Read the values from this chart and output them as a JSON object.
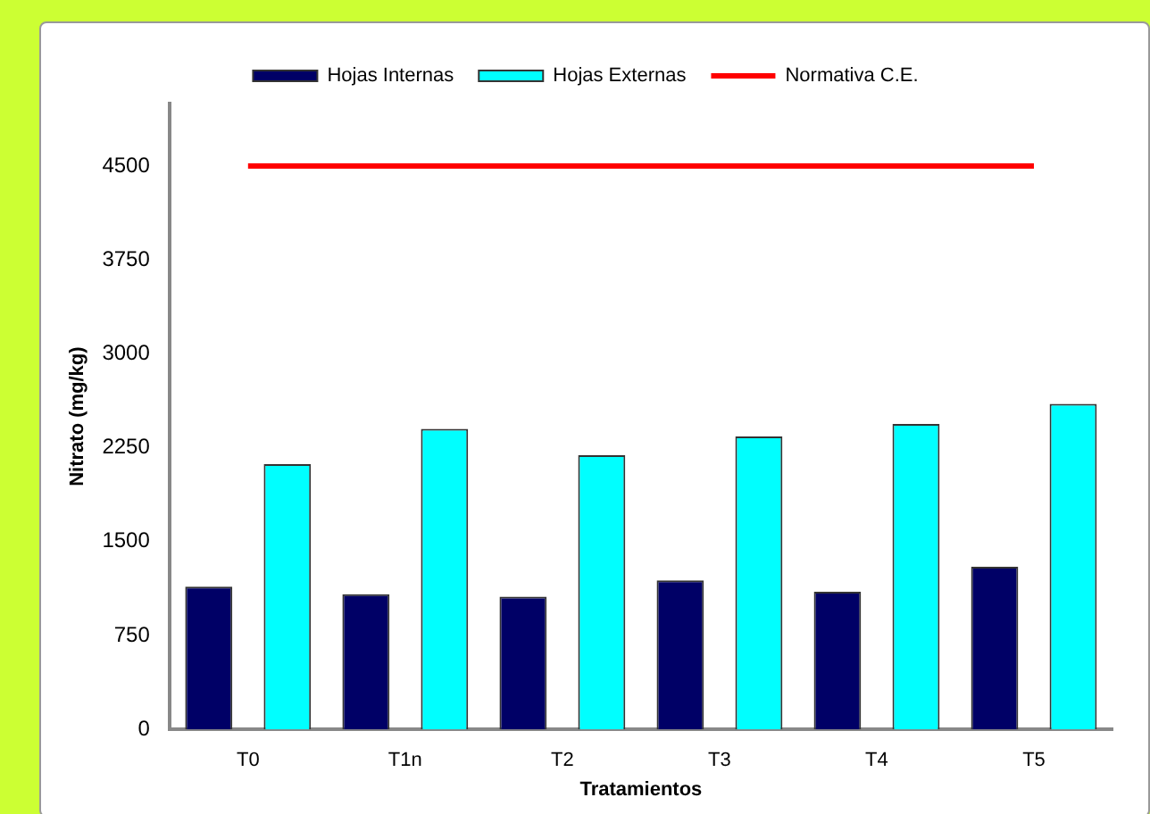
{
  "chart_data": {
    "type": "bar",
    "xlabel": "Tratamientos",
    "ylabel": "Nitrato (mg/kg)",
    "categories": [
      "T0",
      "T1n",
      "T2",
      "T3",
      "T4",
      "T5"
    ],
    "series": [
      {
        "name": "Hojas Internas",
        "color": "#000066",
        "values": [
          1140,
          1080,
          1060,
          1190,
          1100,
          1300
        ]
      },
      {
        "name": "Hojas Externas",
        "color": "#00ffff",
        "values": [
          2120,
          2400,
          2190,
          2340,
          2440,
          2600
        ]
      },
      {
        "name": "Normativa C.E.",
        "type": "line",
        "color": "#ff0000",
        "values": [
          4500,
          4500,
          4500,
          4500,
          4500,
          4500
        ]
      }
    ],
    "ylim": [
      0,
      5000
    ],
    "yticks": [
      0,
      750,
      1500,
      2250,
      3000,
      3750,
      4500
    ],
    "grid": false,
    "legend": "top",
    "marker": "none"
  }
}
